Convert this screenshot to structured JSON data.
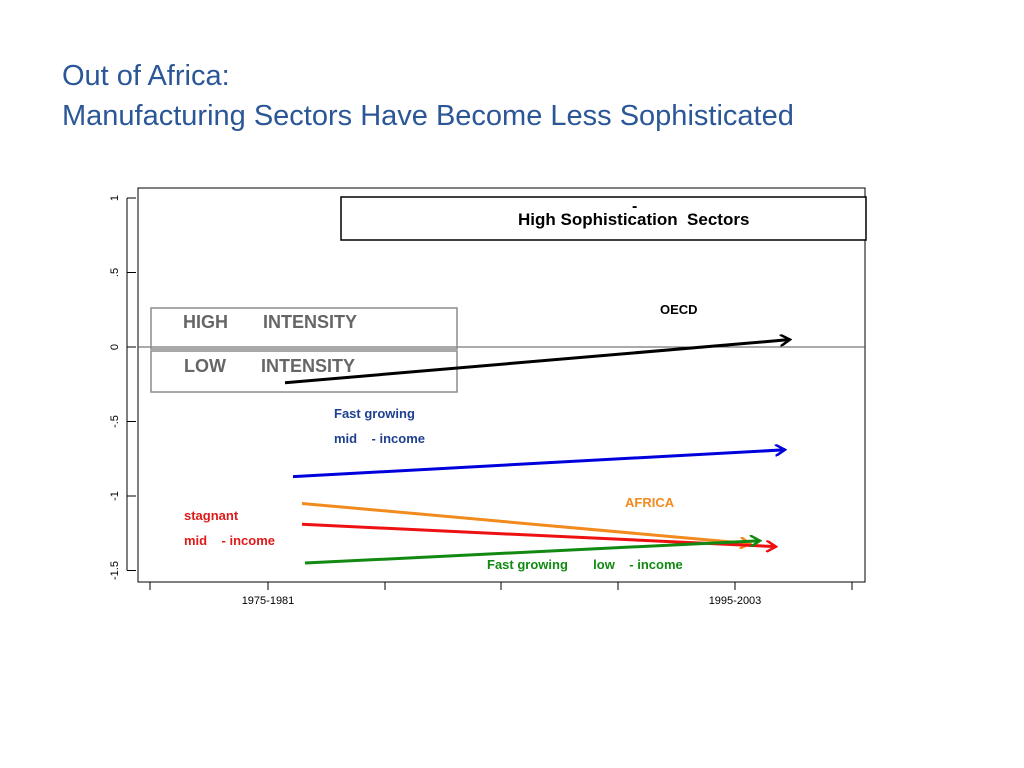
{
  "slide": {
    "title_line1": "Out of Africa:",
    "title_line2": "Manufacturing Sectors Have Become Less Sophisticated"
  },
  "colors": {
    "title": "#2b5797",
    "oecd": "#000000",
    "fast_mid": "#0000dd",
    "africa": "#f28a1e",
    "stagnant_mid": "#ee1111",
    "fast_low": "#128a12",
    "label_blue": "#1f3f8f",
    "label_orange": "#f28a1e",
    "label_red": "#e01919",
    "label_green": "#128a12",
    "box_gray": "#8c8c8c"
  },
  "chart_data": {
    "type": "line",
    "categories": [
      "1975-1981",
      "1995-2003"
    ],
    "ylim": [
      -1.55,
      1.1
    ],
    "yticks": [
      {
        "value": 1,
        "label": "1"
      },
      {
        "value": 0.5,
        "label": ".5"
      },
      {
        "value": 0,
        "label": "0"
      },
      {
        "value": -0.5,
        "label": "-.5"
      },
      {
        "value": -1,
        "label": "-1"
      },
      {
        "value": -1.5,
        "label": "-1.5"
      }
    ],
    "series": [
      {
        "key": "oecd",
        "values": [
          -0.24,
          0.05
        ]
      },
      {
        "key": "fast_mid",
        "values": [
          -0.87,
          -0.69
        ]
      },
      {
        "key": "africa",
        "values": [
          -1.05,
          -1.32
        ]
      },
      {
        "key": "stagnant_mid",
        "values": [
          -1.19,
          -1.34
        ]
      },
      {
        "key": "fast_low",
        "values": [
          -1.45,
          -1.3
        ]
      }
    ],
    "annotations": {
      "high_box": "High Sophistication  Sectors",
      "dash_mark": "-",
      "high_intensity": "HIGH       INTENSITY",
      "low_intensity": "LOW       INTENSITY",
      "oecd": "OECD",
      "fast_growing_mid_1": "Fast growing",
      "fast_growing_mid_2": "mid    - income",
      "africa": "AFRICA",
      "stagnant_1": "stagnant",
      "stagnant_2": "mid    - income",
      "fast_growing_low": "Fast growing       low    - income"
    }
  }
}
